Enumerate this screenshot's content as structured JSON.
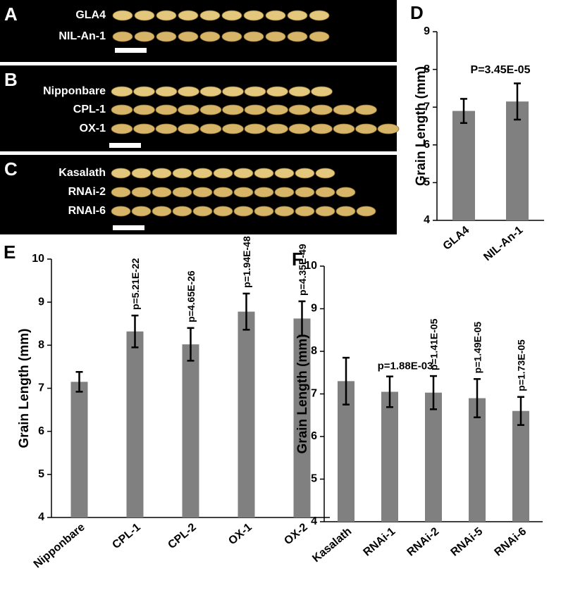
{
  "photos": [
    {
      "panel": "A",
      "labels": [
        "GLA4",
        "NIL-An-1"
      ]
    },
    {
      "panel": "B",
      "labels": [
        "Nipponbare",
        "CPL-1",
        "OX-1"
      ]
    },
    {
      "panel": "C",
      "labels": [
        "Kasalath",
        "RNAi-2",
        "RNAI-6"
      ]
    }
  ],
  "chart_data": [
    {
      "type": "bar",
      "panel": "D",
      "ylabel": "Grain Length (mm)",
      "categories": [
        "GLA4",
        "NIL-An-1"
      ],
      "values": [
        6.9,
        7.15
      ],
      "errors": [
        0.32,
        0.48
      ],
      "annotation": "P=3.45E-05",
      "color": "#808080",
      "ylim": [
        4,
        9
      ],
      "yticks": [
        4,
        5,
        6,
        7,
        8,
        9
      ]
    },
    {
      "type": "bar",
      "panel": "E",
      "ylabel": "Grain Length (mm)",
      "categories": [
        "Nipponbare",
        "CPL-1",
        "CPL-2",
        "OX-1",
        "OX-2"
      ],
      "values": [
        7.15,
        8.32,
        8.02,
        8.78,
        8.62
      ],
      "errors": [
        0.23,
        0.37,
        0.38,
        0.42,
        0.4
      ],
      "annotations": [
        null,
        "p=5.21E-22",
        "p=4.65E-26",
        "p=1.94E-48",
        "p=4.35E-49"
      ],
      "color": "#808080",
      "ylim": [
        4,
        10
      ],
      "yticks": [
        4,
        5,
        6,
        7,
        8,
        9,
        10
      ]
    },
    {
      "type": "bar",
      "panel": "F",
      "ylabel": "Grain Length (mm)",
      "categories": [
        "Kasalath",
        "RNAi-1",
        "RNAi-2",
        "RNAi-5",
        "RNAi-6"
      ],
      "values": [
        7.3,
        7.05,
        7.03,
        6.9,
        6.6
      ],
      "errors": [
        0.55,
        0.36,
        0.39,
        0.45,
        0.33
      ],
      "annotations": [
        null,
        "p=1.88E-03",
        "p=1.41E-05",
        "p=1.49E-05",
        "p=1.73E-05"
      ],
      "color": "#808080",
      "ylim": [
        4,
        10
      ],
      "yticks": [
        4,
        5,
        6,
        7,
        8,
        9,
        10
      ]
    }
  ]
}
